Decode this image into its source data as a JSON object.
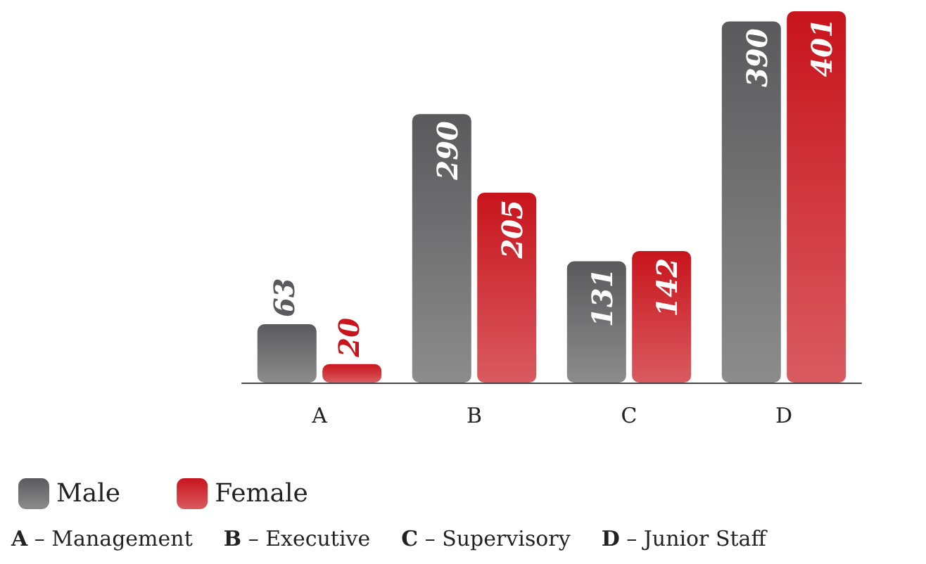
{
  "chart_data": {
    "type": "bar",
    "categories": [
      "A",
      "B",
      "C",
      "D"
    ],
    "series": [
      {
        "name": "Male",
        "color": "#5a5a5c",
        "values": [
          63,
          290,
          131,
          390
        ]
      },
      {
        "name": "Female",
        "color": "#c8141c",
        "values": [
          20,
          205,
          142,
          401
        ]
      }
    ],
    "data_labels": true,
    "legend": "bottom left",
    "annotations": [
      "A – Management",
      "B – Executive",
      "C – Supervisory",
      "D – Junior Staff"
    ]
  }
}
